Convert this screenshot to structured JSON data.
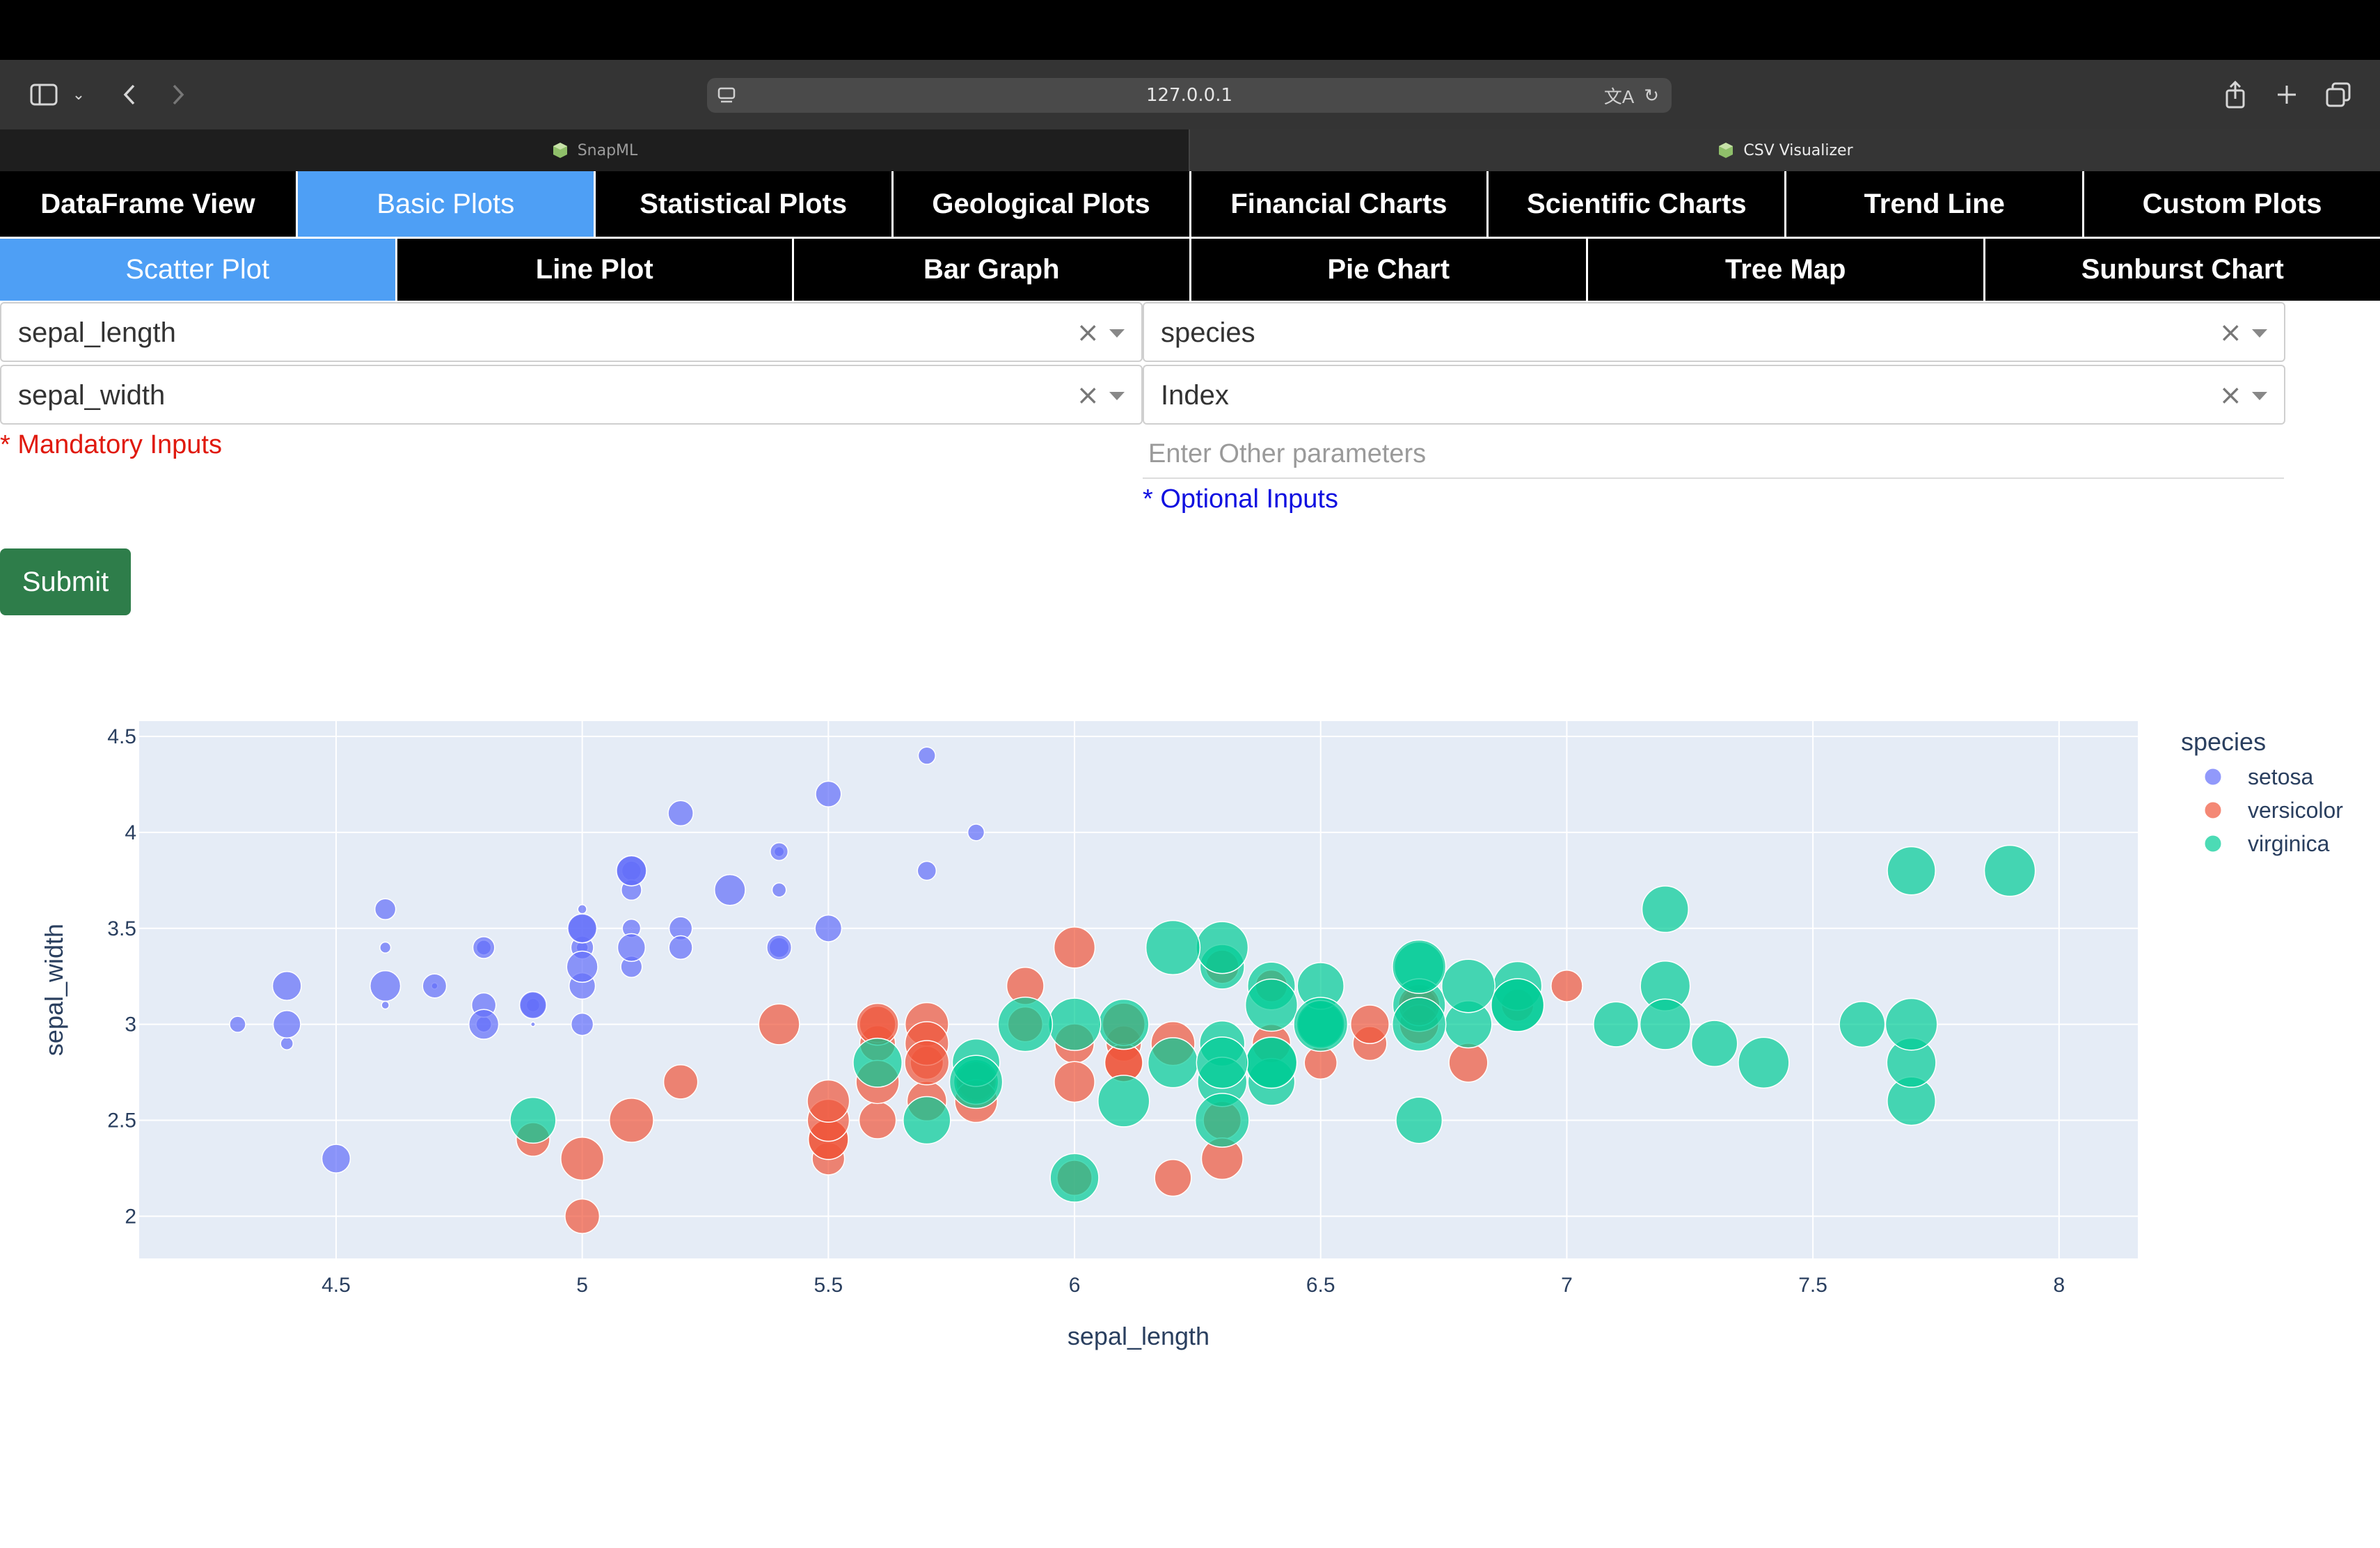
{
  "browser": {
    "url": "127.0.0.1",
    "tabs": [
      {
        "title": "SnapML",
        "active": false
      },
      {
        "title": "CSV Visualizer",
        "active": true
      }
    ]
  },
  "nav": {
    "main_tabs": [
      "DataFrame View",
      "Basic Plots",
      "Statistical Plots",
      "Geological Plots",
      "Financial Charts",
      "Scientific Charts",
      "Trend Line",
      "Custom Plots"
    ],
    "main_selected": 1,
    "sub_tabs": [
      "Scatter Plot",
      "Line Plot",
      "Bar Graph",
      "Pie Chart",
      "Tree Map",
      "Sunburst Chart"
    ],
    "sub_selected": 0
  },
  "form": {
    "x_value": "sepal_length",
    "y_value": "sepal_width",
    "color_value": "species",
    "size_value": "Index",
    "other_placeholder": "Enter Other parameters",
    "mandatory_label": "* Mandatory Inputs",
    "optional_label": "* Optional Inputs",
    "submit_label": "Submit"
  },
  "chart_data": {
    "type": "scatter",
    "xlabel": "sepal_length",
    "ylabel": "sepal_width",
    "xlim": [
      4.1,
      8.16
    ],
    "ylim": [
      1.78,
      4.58
    ],
    "xticks": [
      4.5,
      5,
      5.5,
      6,
      6.5,
      7,
      7.5,
      8
    ],
    "xtick_labels": [
      "4.5",
      "5",
      "5.5",
      "6",
      "6.5",
      "7",
      "7.5",
      "8"
    ],
    "yticks": [
      2,
      2.5,
      3,
      3.5,
      4,
      4.5
    ],
    "ytick_labels": [
      "2",
      "2.5",
      "3",
      "3.5",
      "4",
      "4.5"
    ],
    "grid": true,
    "legend_title": "species",
    "legend_position": "top-right",
    "series": [
      {
        "name": "setosa",
        "color": "#636efa",
        "points": [
          [
            5.1,
            3.5,
            0
          ],
          [
            4.9,
            3.0,
            1
          ],
          [
            4.7,
            3.2,
            2
          ],
          [
            4.6,
            3.1,
            3
          ],
          [
            5.0,
            3.6,
            4
          ],
          [
            5.4,
            3.9,
            5
          ],
          [
            4.6,
            3.4,
            6
          ],
          [
            5.0,
            3.4,
            7
          ],
          [
            4.4,
            2.9,
            8
          ],
          [
            4.9,
            3.1,
            9
          ],
          [
            5.4,
            3.7,
            10
          ],
          [
            4.8,
            3.4,
            11
          ],
          [
            4.8,
            3.0,
            12
          ],
          [
            4.3,
            3.0,
            13
          ],
          [
            5.8,
            4.0,
            14
          ],
          [
            5.7,
            4.4,
            15
          ],
          [
            5.4,
            3.9,
            16
          ],
          [
            5.1,
            3.5,
            17
          ],
          [
            5.7,
            3.8,
            18
          ],
          [
            5.1,
            3.8,
            19
          ],
          [
            5.4,
            3.4,
            20
          ],
          [
            5.1,
            3.7,
            21
          ],
          [
            4.6,
            3.6,
            22
          ],
          [
            5.1,
            3.3,
            23
          ],
          [
            4.8,
            3.4,
            24
          ],
          [
            5.0,
            3.0,
            25
          ],
          [
            5.0,
            3.4,
            26
          ],
          [
            5.2,
            3.5,
            27
          ],
          [
            5.2,
            3.4,
            28
          ],
          [
            4.7,
            3.2,
            29
          ],
          [
            4.8,
            3.1,
            30
          ],
          [
            5.4,
            3.4,
            31
          ],
          [
            5.2,
            4.1,
            32
          ],
          [
            5.5,
            4.2,
            33
          ],
          [
            4.9,
            3.1,
            34
          ],
          [
            5.0,
            3.2,
            35
          ],
          [
            5.5,
            3.5,
            36
          ],
          [
            4.9,
            3.1,
            37
          ],
          [
            4.4,
            3.0,
            38
          ],
          [
            5.1,
            3.4,
            39
          ],
          [
            5.0,
            3.5,
            40
          ],
          [
            4.5,
            2.3,
            41
          ],
          [
            4.4,
            3.2,
            42
          ],
          [
            5.0,
            3.5,
            43
          ],
          [
            5.1,
            3.8,
            44
          ],
          [
            4.8,
            3.0,
            45
          ],
          [
            5.1,
            3.8,
            46
          ],
          [
            4.6,
            3.2,
            47
          ],
          [
            5.3,
            3.7,
            48
          ],
          [
            5.0,
            3.3,
            49
          ]
        ]
      },
      {
        "name": "versicolor",
        "color": "#ef553b",
        "points": [
          [
            7.0,
            3.2,
            50
          ],
          [
            6.4,
            3.2,
            51
          ],
          [
            6.9,
            3.1,
            52
          ],
          [
            5.5,
            2.3,
            53
          ],
          [
            6.5,
            2.8,
            54
          ],
          [
            5.7,
            2.8,
            55
          ],
          [
            6.3,
            3.3,
            56
          ],
          [
            4.9,
            2.4,
            57
          ],
          [
            6.6,
            2.9,
            58
          ],
          [
            5.2,
            2.7,
            59
          ],
          [
            5.0,
            2.0,
            60
          ],
          [
            5.9,
            3.0,
            61
          ],
          [
            6.0,
            2.2,
            62
          ],
          [
            6.1,
            2.9,
            63
          ],
          [
            5.6,
            2.9,
            64
          ],
          [
            6.7,
            3.1,
            65
          ],
          [
            5.6,
            3.0,
            66
          ],
          [
            5.8,
            2.7,
            67
          ],
          [
            6.2,
            2.2,
            68
          ],
          [
            5.6,
            2.5,
            69
          ],
          [
            5.9,
            3.2,
            70
          ],
          [
            6.1,
            2.8,
            71
          ],
          [
            6.3,
            2.5,
            72
          ],
          [
            6.1,
            2.8,
            73
          ],
          [
            6.4,
            2.9,
            74
          ],
          [
            6.6,
            3.0,
            75
          ],
          [
            6.8,
            2.8,
            76
          ],
          [
            6.7,
            3.0,
            77
          ],
          [
            6.0,
            2.9,
            78
          ],
          [
            5.7,
            2.6,
            79
          ],
          [
            5.5,
            2.4,
            80
          ],
          [
            5.5,
            2.4,
            81
          ],
          [
            5.8,
            2.7,
            82
          ],
          [
            6.0,
            2.7,
            83
          ],
          [
            5.4,
            3.0,
            84
          ],
          [
            6.0,
            3.4,
            85
          ],
          [
            6.7,
            3.1,
            86
          ],
          [
            6.3,
            2.3,
            87
          ],
          [
            5.6,
            3.0,
            88
          ],
          [
            5.5,
            2.5,
            89
          ],
          [
            5.5,
            2.6,
            90
          ],
          [
            6.1,
            3.0,
            91
          ],
          [
            5.8,
            2.6,
            92
          ],
          [
            5.0,
            2.3,
            93
          ],
          [
            5.6,
            2.7,
            94
          ],
          [
            5.7,
            3.0,
            95
          ],
          [
            5.7,
            2.9,
            96
          ],
          [
            6.2,
            2.9,
            97
          ],
          [
            5.1,
            2.5,
            98
          ],
          [
            5.7,
            2.8,
            99
          ]
        ]
      },
      {
        "name": "virginica",
        "color": "#00cc96",
        "points": [
          [
            6.3,
            3.3,
            100
          ],
          [
            5.8,
            2.7,
            101
          ],
          [
            7.1,
            3.0,
            102
          ],
          [
            6.3,
            2.9,
            103
          ],
          [
            6.5,
            3.0,
            104
          ],
          [
            7.6,
            3.0,
            105
          ],
          [
            4.9,
            2.5,
            106
          ],
          [
            7.3,
            2.9,
            107
          ],
          [
            6.7,
            2.5,
            108
          ],
          [
            7.2,
            3.6,
            109
          ],
          [
            6.5,
            3.2,
            110
          ],
          [
            6.4,
            2.7,
            111
          ],
          [
            6.8,
            3.0,
            112
          ],
          [
            5.7,
            2.5,
            113
          ],
          [
            5.8,
            2.8,
            114
          ],
          [
            6.4,
            3.2,
            115
          ],
          [
            6.5,
            3.0,
            116
          ],
          [
            7.7,
            3.8,
            117
          ],
          [
            7.7,
            2.6,
            118
          ],
          [
            6.0,
            2.2,
            119
          ],
          [
            6.9,
            3.2,
            120
          ],
          [
            5.6,
            2.8,
            121
          ],
          [
            7.7,
            2.8,
            122
          ],
          [
            6.3,
            2.7,
            123
          ],
          [
            6.7,
            3.3,
            124
          ],
          [
            7.2,
            3.2,
            125
          ],
          [
            6.2,
            2.8,
            126
          ],
          [
            6.1,
            3.0,
            127
          ],
          [
            6.4,
            2.8,
            128
          ],
          [
            7.2,
            3.0,
            129
          ],
          [
            7.4,
            2.8,
            130
          ],
          [
            7.9,
            3.8,
            131
          ],
          [
            6.4,
            2.8,
            132
          ],
          [
            6.3,
            2.8,
            133
          ],
          [
            6.1,
            2.6,
            134
          ],
          [
            7.7,
            3.0,
            135
          ],
          [
            6.3,
            3.4,
            136
          ],
          [
            6.4,
            3.1,
            137
          ],
          [
            6.0,
            3.0,
            138
          ],
          [
            6.9,
            3.1,
            139
          ],
          [
            6.7,
            3.1,
            140
          ],
          [
            6.9,
            3.1,
            141
          ],
          [
            5.8,
            2.7,
            142
          ],
          [
            6.8,
            3.2,
            143
          ],
          [
            6.7,
            3.3,
            144
          ],
          [
            6.7,
            3.0,
            145
          ],
          [
            6.3,
            2.5,
            146
          ],
          [
            6.5,
            3.0,
            147
          ],
          [
            6.2,
            3.4,
            148
          ],
          [
            5.9,
            3.0,
            149
          ]
        ]
      }
    ]
  }
}
